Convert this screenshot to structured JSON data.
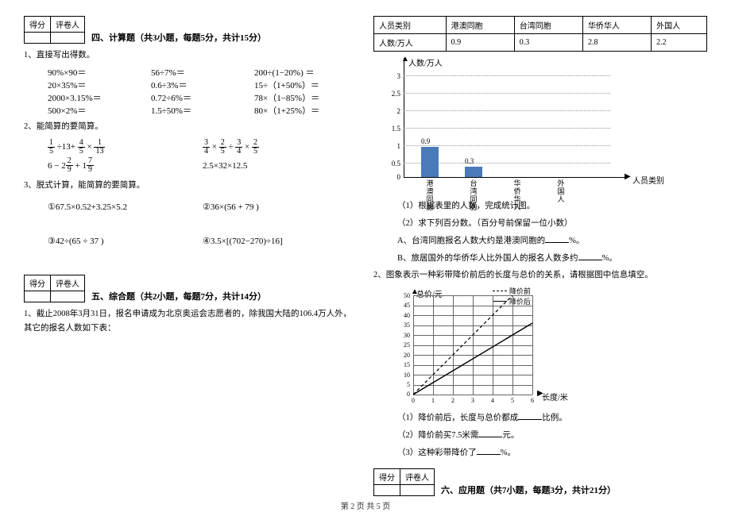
{
  "score_box": {
    "h1": "得分",
    "h2": "评卷人"
  },
  "sec4": {
    "title": "四、计算题（共3小题，每题5分，共计15分）",
    "q1_label": "1、直接写出得数。",
    "rows": [
      [
        "90%×90＝",
        "56÷7%＝",
        "200÷(1−20%) ＝"
      ],
      [
        "20×35%＝",
        "0.6÷3%＝",
        "15÷（1+50%）＝"
      ],
      [
        "2000×3.15%＝",
        "0.72÷6%＝",
        "78×（1−85%）＝"
      ],
      [
        "500×2%＝",
        "1.5÷50%＝",
        "80×（1+25%）＝"
      ]
    ],
    "q2_label": "2、能简算的要简算。",
    "q3_label": "3、脱式计算，能简算的要简算。",
    "q3_items": [
      "①67.5×0.52+3.25×5.2",
      "②36×(56 + 79 )",
      "③42÷(65 ÷ 37 )",
      "④3.5×[(702−270)÷16]"
    ]
  },
  "sec5": {
    "title": "五、综合题（共2小题，每题7分，共计14分）",
    "q1": "1、截止2008年3月31日，报名申请成为北京奥运会志愿者的，除我国大陆的106.4万人外，其它的报名人数如下表：",
    "table": {
      "h": [
        "人员类别",
        "港澳同胞",
        "台湾同胞",
        "华侨华人",
        "外国人"
      ],
      "r": [
        "人数/万人",
        "0.9",
        "0.3",
        "2.8",
        "2.2"
      ]
    },
    "chart": {
      "y_label": "人数/万人",
      "x_label": "人员类别",
      "y_ticks": [
        "3",
        "2.5",
        "2",
        "1.5",
        "1",
        "0.5",
        "0"
      ],
      "bars": [
        {
          "label": "港澳同胞",
          "value": "0.9",
          "h": 38
        },
        {
          "label": "台湾同胞",
          "value": "0.3",
          "h": 13
        },
        {
          "label": "华侨华人",
          "value": "",
          "h": 0
        },
        {
          "label": "外国人",
          "value": "",
          "h": 0
        }
      ],
      "bar_color": "#4a7ab8"
    },
    "sub1": "（1）根据表里的人数，完成统计图。",
    "sub2": "（2）求下列百分数。（百分号前保留一位小数）",
    "sub2a": "A、台湾同胞报名人数大约是港澳同胞的",
    "sub2b": "B、旅居国外的华侨华人比外国人的报名人数多约",
    "pct": "%。",
    "q2": "2、图象表示一种彩带降价前后的长度与总价的关系，请根据图中信息填空。",
    "line_chart": {
      "y_label": "总价/元",
      "x_label": "长度/米",
      "legend": [
        "降价前",
        "降价后"
      ],
      "y_ticks": [
        "50",
        "45",
        "40",
        "35",
        "30",
        "25",
        "20",
        "15",
        "10",
        "5",
        "0"
      ],
      "x_ticks": [
        "0",
        "1",
        "2",
        "3",
        "4",
        "5",
        "6"
      ]
    },
    "sub_q2_1": "（1）降价前后，长度与总价都成",
    "sub_q2_1b": "比例。",
    "sub_q2_2": "（2）降价前买7.5米需",
    "sub_q2_2b": "元。",
    "sub_q2_3": "（3）这种彩带降价了",
    "sub_q2_3b": "%。"
  },
  "sec6": {
    "title": "六、应用题（共7小题，每题3分，共计21分）"
  },
  "footer": "第 2 页 共 5 页"
}
